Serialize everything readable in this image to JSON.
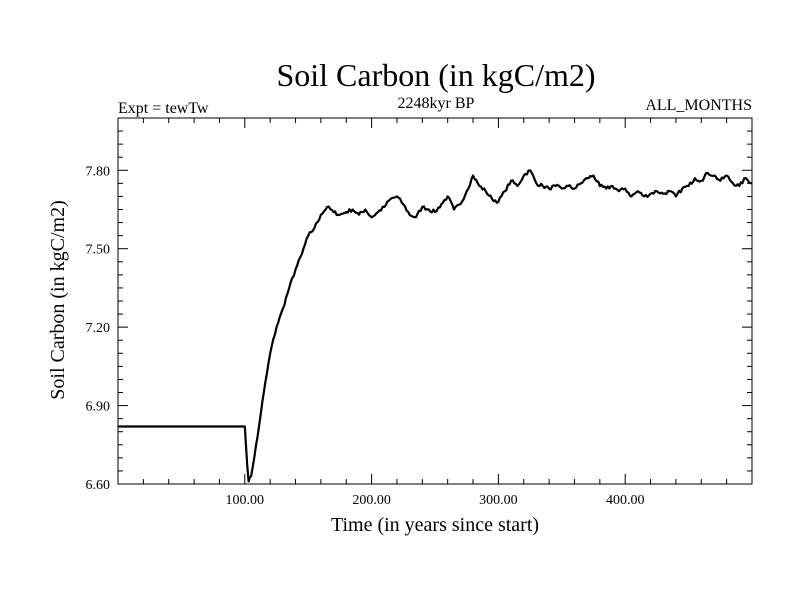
{
  "chart_data": {
    "type": "line",
    "title": "Soil Carbon (in kgC/m2)",
    "subtitle": "2248kyr BP",
    "left_label": "Expt = tewTw",
    "right_label": "ALL_MONTHS",
    "xlabel": "Time (in years since start)",
    "ylabel": "Soil Carbon (in kgC/m2)",
    "xlim": [
      0,
      500
    ],
    "ylim": [
      6.6,
      8.0
    ],
    "x_ticks": [
      100,
      200,
      300,
      400
    ],
    "x_tick_labels": [
      "100.00",
      "200.00",
      "300.00",
      "400.00"
    ],
    "y_ticks": [
      6.6,
      6.9,
      7.2,
      7.5,
      7.8
    ],
    "y_tick_labels": [
      "6.60",
      "6.90",
      "7.20",
      "7.50",
      "7.80"
    ],
    "series": [
      {
        "name": "Soil Carbon",
        "color": "#000000",
        "x": [
          0,
          99,
          100,
          101,
          103,
          105,
          110,
          115,
          120,
          125,
          130,
          135,
          140,
          145,
          150,
          155,
          160,
          165,
          170,
          175,
          180,
          185,
          190,
          195,
          200,
          205,
          210,
          215,
          220,
          225,
          230,
          235,
          240,
          245,
          250,
          255,
          260,
          265,
          270,
          275,
          280,
          285,
          290,
          295,
          300,
          305,
          310,
          315,
          320,
          325,
          330,
          335,
          340,
          345,
          350,
          355,
          360,
          365,
          370,
          375,
          380,
          385,
          390,
          395,
          400,
          405,
          410,
          415,
          420,
          425,
          430,
          435,
          440,
          445,
          450,
          455,
          460,
          465,
          470,
          475,
          480,
          485,
          490,
          495,
          500
        ],
        "values": [
          6.82,
          6.82,
          6.82,
          6.74,
          6.61,
          6.63,
          6.78,
          6.95,
          7.1,
          7.2,
          7.27,
          7.35,
          7.42,
          7.48,
          7.55,
          7.58,
          7.63,
          7.66,
          7.64,
          7.63,
          7.64,
          7.65,
          7.63,
          7.65,
          7.62,
          7.64,
          7.66,
          7.69,
          7.7,
          7.67,
          7.63,
          7.62,
          7.66,
          7.65,
          7.64,
          7.67,
          7.7,
          7.65,
          7.67,
          7.72,
          7.78,
          7.74,
          7.72,
          7.69,
          7.68,
          7.72,
          7.76,
          7.74,
          7.78,
          7.8,
          7.75,
          7.74,
          7.73,
          7.74,
          7.73,
          7.74,
          7.73,
          7.75,
          7.77,
          7.78,
          7.74,
          7.73,
          7.74,
          7.72,
          7.73,
          7.7,
          7.72,
          7.7,
          7.71,
          7.72,
          7.71,
          7.72,
          7.7,
          7.73,
          7.74,
          7.77,
          7.76,
          7.79,
          7.78,
          7.76,
          7.78,
          7.75,
          7.74,
          7.77,
          7.75
        ]
      }
    ]
  }
}
